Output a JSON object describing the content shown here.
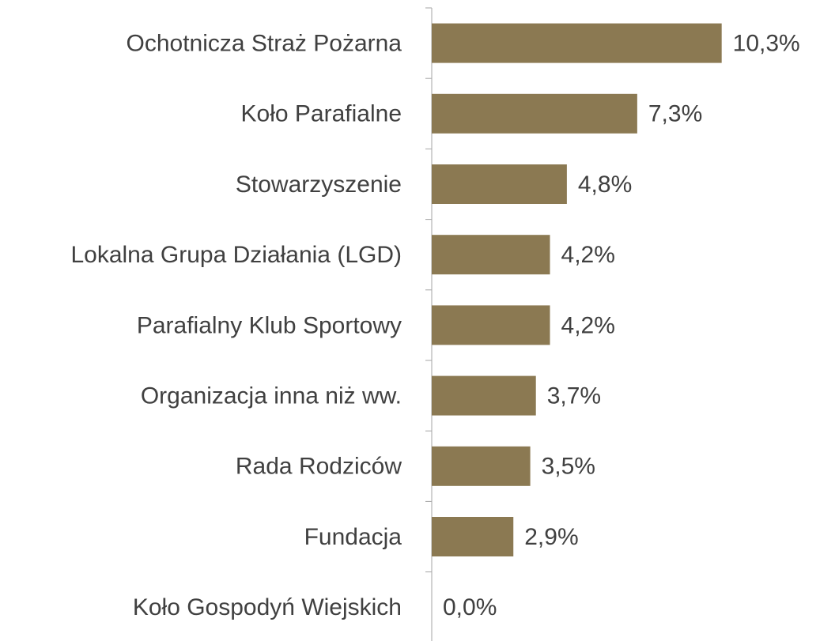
{
  "chart_data": {
    "type": "bar",
    "orientation": "horizontal",
    "categories": [
      "Ochotnicza Straż Pożarna",
      "Koło Parafialne",
      "Stowarzyszenie",
      "Lokalna Grupa Działania (LGD)",
      "Parafialny Klub Sportowy",
      "Organizacja inna niż ww.",
      "Rada Rodziców",
      "Fundacja",
      "Koło Gospodyń Wiejskich"
    ],
    "values": [
      10.3,
      7.3,
      4.8,
      4.2,
      4.2,
      3.7,
      3.5,
      2.9,
      0.0
    ],
    "value_labels": [
      "10,3%",
      "7,3%",
      "4,8%",
      "4,2%",
      "4,2%",
      "3,7%",
      "3,5%",
      "2,9%",
      "0,0%"
    ],
    "color": "#8b7952"
  }
}
